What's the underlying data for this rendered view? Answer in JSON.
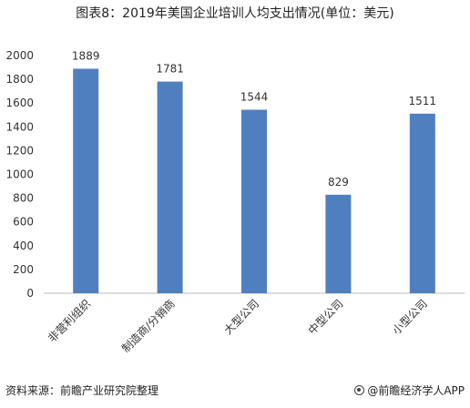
{
  "chart_data": {
    "type": "bar",
    "title": "图表8：2019年美国企业培训人均支出情况(单位：美元)",
    "categories": [
      "非营利组织",
      "制造商/分销商",
      "大型公司",
      "中型公司",
      "小型公司"
    ],
    "values": [
      1889,
      1781,
      1544,
      829,
      1511
    ],
    "ylim": [
      0,
      2000
    ],
    "yticks": [
      0,
      200,
      400,
      600,
      800,
      1000,
      1200,
      1400,
      1600,
      1800,
      2000
    ],
    "grid": false,
    "legend": "none",
    "bar_color": "#4f7fbf"
  },
  "footer": {
    "source": "资料来源：前瞻产业研究院整理",
    "logo": "@前瞻经济学人APP"
  }
}
